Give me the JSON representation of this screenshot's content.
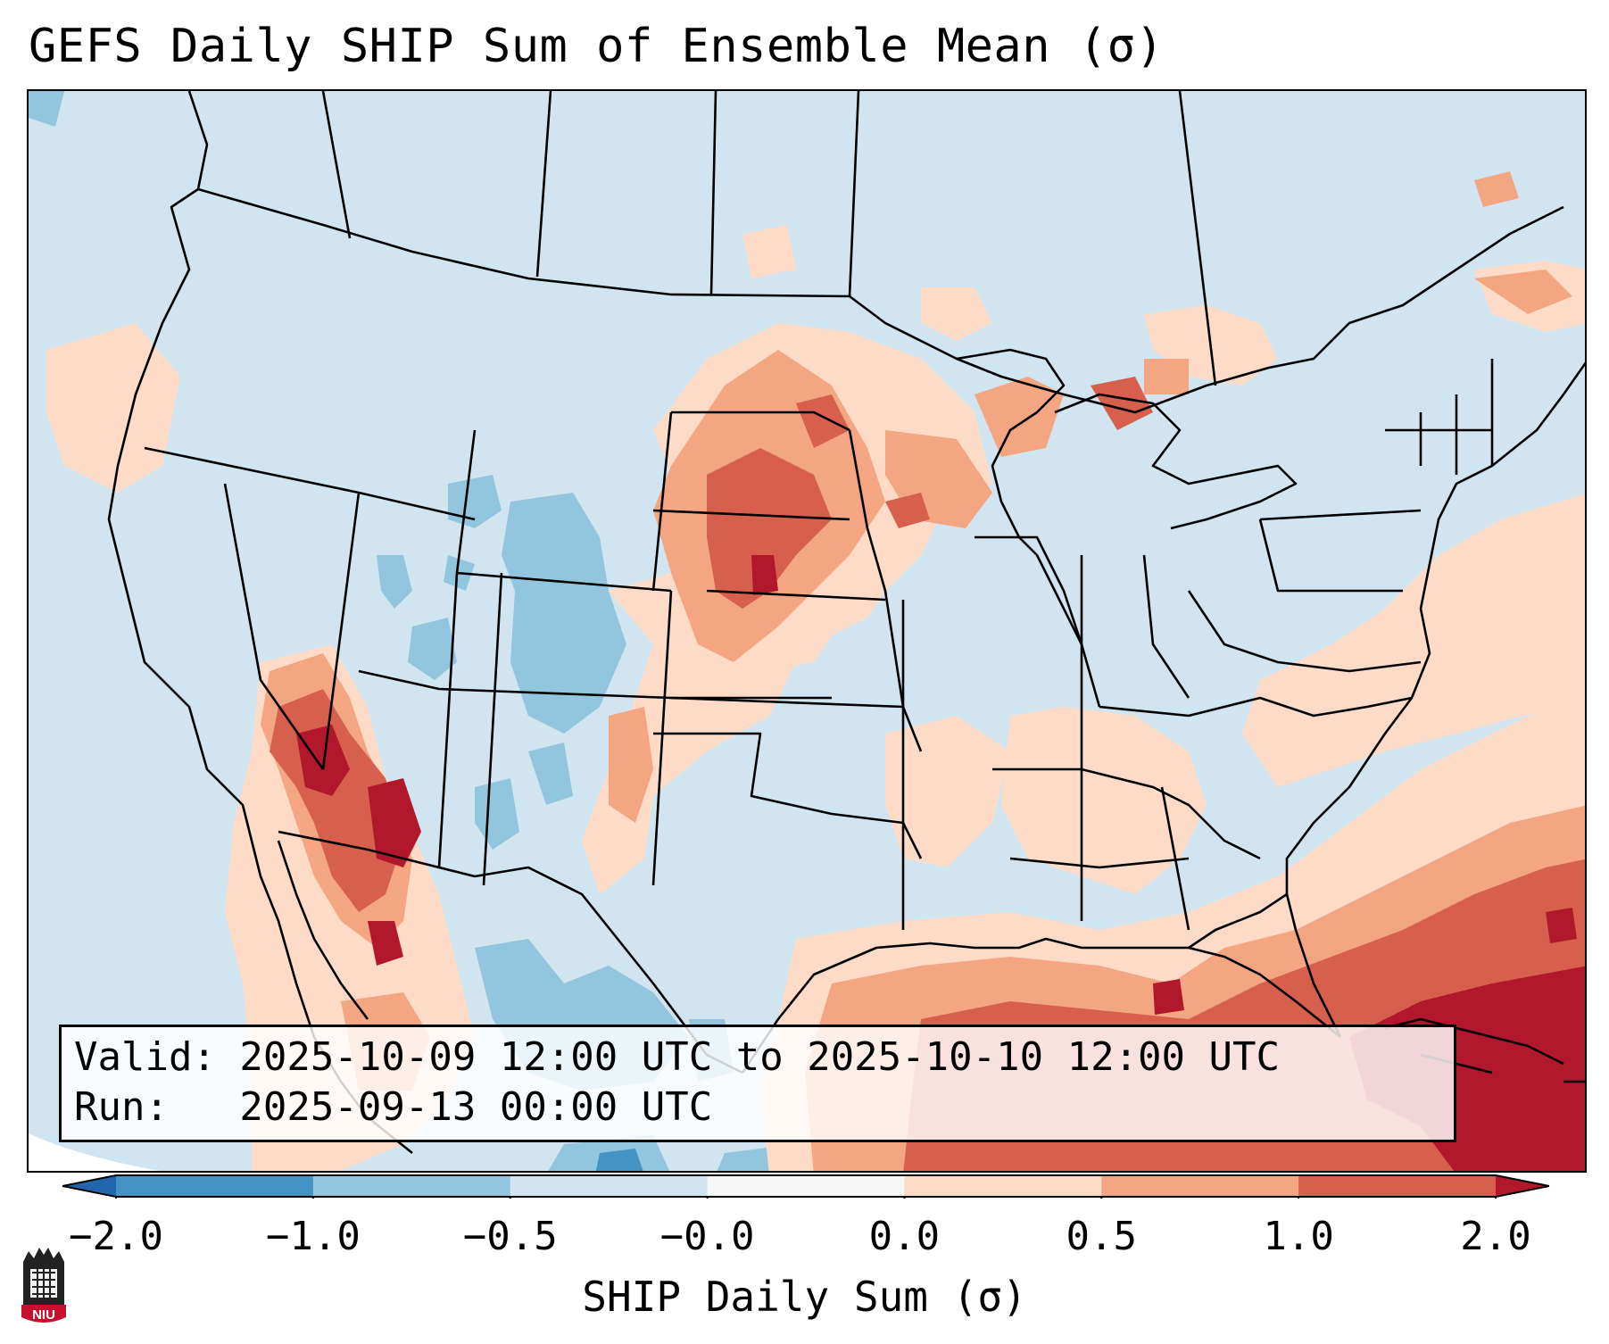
{
  "title": "GEFS Daily SHIP Sum of Ensemble Mean (σ)",
  "info": {
    "valid_line": "Valid: 2025-10-09 12:00 UTC to 2025-10-10 12:00 UTC",
    "run_line": "Run:   2025-09-13 00:00 UTC"
  },
  "colorbar": {
    "label": "SHIP Daily Sum (σ)",
    "ticks": [
      "−2.0",
      "−1.0",
      "−0.5",
      "−0.0",
      "0.0",
      "0.5",
      "1.0",
      "2.0"
    ],
    "bins": [
      {
        "range": "< -2.0",
        "color": "#2166ac"
      },
      {
        "range": "-2.0 to -1.0",
        "color": "#4393c3"
      },
      {
        "range": "-1.0 to -0.5",
        "color": "#92c5de"
      },
      {
        "range": "-0.5 to -0.0",
        "color": "#d1e5f0"
      },
      {
        "range": "-0.0 to 0.0",
        "color": "#f7f7f7"
      },
      {
        "range": "0.0 to 0.5",
        "color": "#fddbc7"
      },
      {
        "range": "0.5 to 1.0",
        "color": "#f4a582"
      },
      {
        "range": "1.0 to 2.0",
        "color": "#d6604d"
      },
      {
        "range": "> 2.0",
        "color": "#b2182b"
      }
    ]
  },
  "logo": {
    "text": "NIU"
  }
}
